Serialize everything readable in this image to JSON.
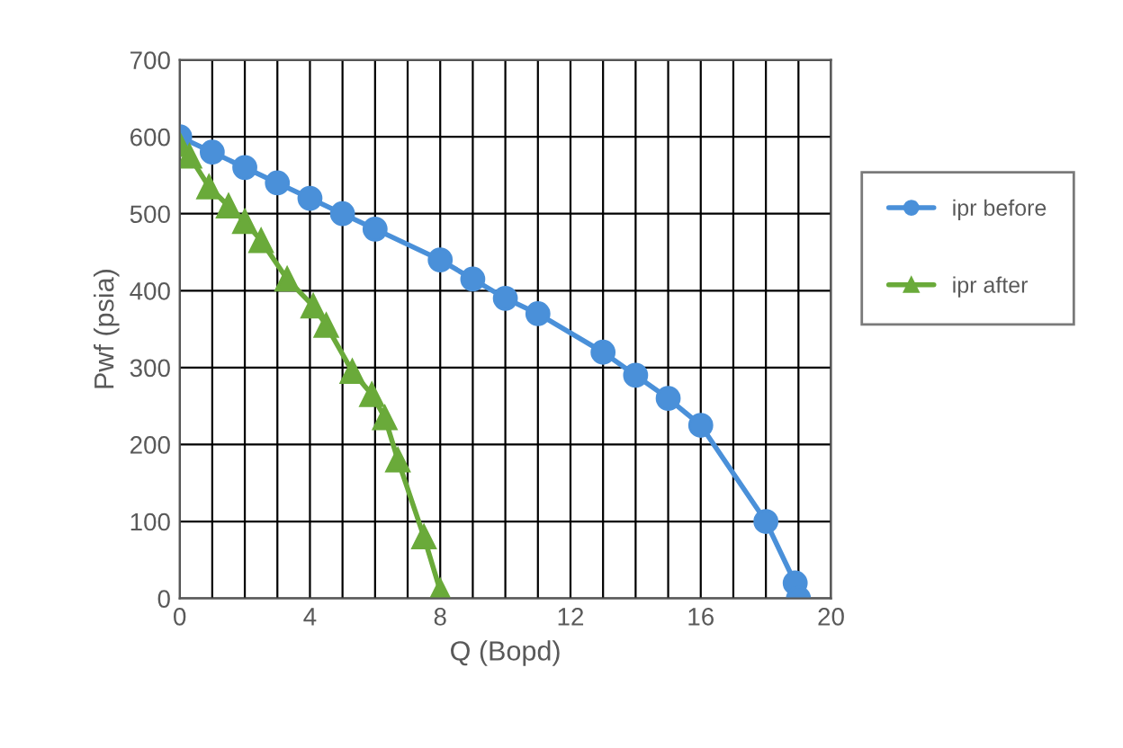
{
  "chart_data": {
    "type": "line",
    "xlabel": "Q (Bopd)",
    "ylabel": "Pwf (psia)",
    "xlim": [
      0,
      20
    ],
    "ylim": [
      0,
      700
    ],
    "xticks": [
      0,
      {
        "value": 1,
        "label": null
      },
      {
        "value": 2,
        "label": null
      },
      {
        "value": 3,
        "label": null
      },
      4,
      {
        "value": 5,
        "label": null
      },
      {
        "value": 6,
        "label": null
      },
      {
        "value": 7,
        "label": null
      },
      8,
      {
        "value": 9,
        "label": null
      },
      {
        "value": 10,
        "label": null
      },
      {
        "value": 11,
        "label": null
      },
      12,
      {
        "value": 13,
        "label": null
      },
      {
        "value": 14,
        "label": null
      },
      {
        "value": 15,
        "label": null
      },
      16,
      {
        "value": 17,
        "label": null
      },
      {
        "value": 18,
        "label": null
      },
      {
        "value": 19,
        "label": null
      },
      20
    ],
    "yticks": [
      0,
      100,
      200,
      300,
      400,
      500,
      600,
      700
    ],
    "grid": true,
    "legend": "right",
    "series": [
      {
        "name": "ipr before",
        "color": "#4a90d9",
        "marker": "circle",
        "x": [
          0,
          1,
          2,
          3,
          4,
          5,
          6,
          8,
          9,
          10,
          11,
          13,
          14,
          15,
          16,
          18,
          18.9,
          19
        ],
        "values": [
          600,
          580,
          560,
          540,
          520,
          500,
          480,
          440,
          415,
          390,
          370,
          320,
          290,
          260,
          225,
          100,
          20,
          0
        ]
      },
      {
        "name": "ipr after",
        "color": "#6aaa3a",
        "marker": "triangle",
        "x": [
          0,
          0.3,
          0.9,
          1.5,
          2,
          2.5,
          3.3,
          4.1,
          4.5,
          5.3,
          5.9,
          6.3,
          6.7,
          7.5,
          8,
          8
        ],
        "values": [
          590,
          575,
          535,
          510,
          490,
          465,
          415,
          380,
          355,
          295,
          265,
          235,
          180,
          80,
          10,
          0
        ]
      }
    ]
  }
}
